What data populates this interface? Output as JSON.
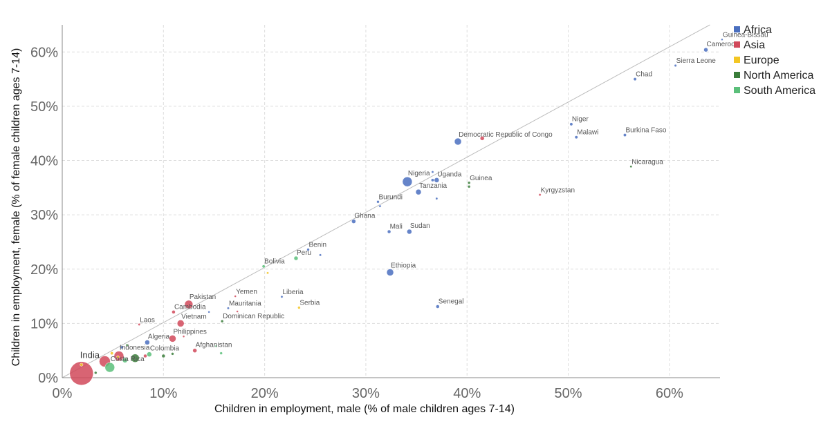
{
  "chart_data": {
    "type": "scatter",
    "xlabel": "Children in employment, male (% of male children ages 7-14)",
    "ylabel": "Children in employment, female (% of female children ages 7-14)",
    "xlim": [
      0,
      65
    ],
    "ylim": [
      0,
      65
    ],
    "x_ticks": [
      {
        "value": 0,
        "label": "0%"
      },
      {
        "value": 10,
        "label": "10%"
      },
      {
        "value": 20,
        "label": "20%"
      },
      {
        "value": 30,
        "label": "30%"
      },
      {
        "value": 40,
        "label": "40%"
      },
      {
        "value": 50,
        "label": "50%"
      },
      {
        "value": 60,
        "label": "60%"
      }
    ],
    "y_ticks": [
      {
        "value": 0,
        "label": "0%"
      },
      {
        "value": 10,
        "label": "10%"
      },
      {
        "value": 20,
        "label": "20%"
      },
      {
        "value": 30,
        "label": "30%"
      },
      {
        "value": 40,
        "label": "40%"
      },
      {
        "value": 50,
        "label": "50%"
      },
      {
        "value": 60,
        "label": "60%"
      }
    ],
    "grid": true,
    "reference_line": "y = x",
    "legend_position": "right-top",
    "legend": [
      {
        "name": "Africa",
        "color": "#4a6fbf"
      },
      {
        "name": "Asia",
        "color": "#d1495b"
      },
      {
        "name": "Europe",
        "color": "#f3c623"
      },
      {
        "name": "North America",
        "color": "#3a7d3a"
      },
      {
        "name": "South America",
        "color": "#5bbf7a"
      }
    ],
    "points": [
      {
        "label": "Guinea-Bissau",
        "region": "Africa",
        "x": 65.2,
        "y": 62.3,
        "size": 1.5
      },
      {
        "label": "Cameroon",
        "region": "Africa",
        "x": 63.6,
        "y": 60.4,
        "size": 3
      },
      {
        "label": "Sierra Leone",
        "region": "Africa",
        "x": 60.6,
        "y": 57.5,
        "size": 1.8
      },
      {
        "label": "Chad",
        "region": "Africa",
        "x": 56.6,
        "y": 55.0,
        "size": 2.2
      },
      {
        "label": "Niger",
        "region": "Africa",
        "x": 50.3,
        "y": 46.7,
        "size": 2.2
      },
      {
        "label": "Malawi",
        "region": "Africa",
        "x": 50.8,
        "y": 44.3,
        "size": 2.2
      },
      {
        "label": "Burkina Faso",
        "region": "Africa",
        "x": 55.6,
        "y": 44.7,
        "size": 2.2
      },
      {
        "label": "Nicaragua",
        "region": "North America",
        "x": 56.2,
        "y": 38.9,
        "size": 1.7
      },
      {
        "label": "Democratic Republic of Congo",
        "region": "Africa",
        "x": 39.1,
        "y": 43.5,
        "size": 5
      },
      {
        "label": "",
        "region": "Asia",
        "x": 41.5,
        "y": 44.1,
        "size": 3
      },
      {
        "label": "Kyrgyzstan",
        "region": "Asia",
        "x": 47.2,
        "y": 33.7,
        "size": 1.7
      },
      {
        "label": "Guinea",
        "region": "North America",
        "x": 40.2,
        "y": 35.9,
        "size": 2
      },
      {
        "label": "",
        "region": "North America",
        "x": 40.2,
        "y": 35.2,
        "size": 2
      },
      {
        "label": "Nigeria",
        "region": "Africa",
        "x": 34.1,
        "y": 36.1,
        "size": 7
      },
      {
        "label": "Uganda",
        "region": "Africa",
        "x": 37.0,
        "y": 36.4,
        "size": 3.5
      },
      {
        "label": "",
        "region": "Africa",
        "x": 36.6,
        "y": 36.4,
        "size": 2.2
      },
      {
        "label": "",
        "region": "Africa",
        "x": 36.6,
        "y": 37.9,
        "size": 1.7
      },
      {
        "label": "Tanzania",
        "region": "Africa",
        "x": 35.2,
        "y": 34.2,
        "size": 4
      },
      {
        "label": "",
        "region": "Africa",
        "x": 37.0,
        "y": 33.0,
        "size": 1.7
      },
      {
        "label": "Burundi",
        "region": "Africa",
        "x": 31.2,
        "y": 32.4,
        "size": 2
      },
      {
        "label": "",
        "region": "Africa",
        "x": 31.4,
        "y": 31.6,
        "size": 1.7
      },
      {
        "label": "Ghana",
        "region": "Africa",
        "x": 28.8,
        "y": 28.8,
        "size": 3
      },
      {
        "label": "Mali",
        "region": "Africa",
        "x": 32.3,
        "y": 26.9,
        "size": 2.5
      },
      {
        "label": "Sudan",
        "region": "Africa",
        "x": 34.3,
        "y": 26.9,
        "size": 3.5
      },
      {
        "label": "Benin",
        "region": "Africa",
        "x": 24.3,
        "y": 23.6,
        "size": 2
      },
      {
        "label": "",
        "region": "Africa",
        "x": 25.5,
        "y": 22.6,
        "size": 1.7
      },
      {
        "label": "Peru",
        "region": "South America",
        "x": 23.1,
        "y": 22.0,
        "size": 3
      },
      {
        "label": "Bolivia",
        "region": "South America",
        "x": 19.9,
        "y": 20.5,
        "size": 2.2
      },
      {
        "label": "",
        "region": "Europe",
        "x": 20.3,
        "y": 19.3,
        "size": 1.7
      },
      {
        "label": "Ethiopia",
        "region": "Africa",
        "x": 32.4,
        "y": 19.4,
        "size": 5
      },
      {
        "label": "Liberia",
        "region": "Africa",
        "x": 21.7,
        "y": 14.9,
        "size": 1.7
      },
      {
        "label": "Yemen",
        "region": "Asia",
        "x": 17.1,
        "y": 15.0,
        "size": 1.5
      },
      {
        "label": "Serbia",
        "region": "Europe",
        "x": 23.4,
        "y": 12.9,
        "size": 2
      },
      {
        "label": "Senegal",
        "region": "Africa",
        "x": 37.1,
        "y": 13.1,
        "size": 2.5
      },
      {
        "label": "Mauritania",
        "region": "Africa",
        "x": 16.4,
        "y": 12.8,
        "size": 1.7
      },
      {
        "label": "",
        "region": "Asia",
        "x": 17.3,
        "y": 12.2,
        "size": 1.5
      },
      {
        "label": "Dominican Republic",
        "region": "North America",
        "x": 15.8,
        "y": 10.4,
        "size": 2
      },
      {
        "label": "Cambodia",
        "region": "Asia",
        "x": 11.0,
        "y": 12.1,
        "size": 2.5
      },
      {
        "label": "",
        "region": "Africa",
        "x": 14.5,
        "y": 12.1,
        "size": 1.5
      },
      {
        "label": "Pakistan",
        "region": "Asia",
        "x": 12.5,
        "y": 13.5,
        "size": 6
      },
      {
        "label": "Vietnam",
        "region": "Asia",
        "x": 11.7,
        "y": 10.0,
        "size": 5
      },
      {
        "label": "Laos",
        "region": "Asia",
        "x": 7.6,
        "y": 9.8,
        "size": 1.7
      },
      {
        "label": "Philippines",
        "region": "Asia",
        "x": 10.9,
        "y": 7.2,
        "size": 5
      },
      {
        "label": "",
        "region": "Asia",
        "x": 12.0,
        "y": 7.6,
        "size": 1.5
      },
      {
        "label": "Afghanistan",
        "region": "Asia",
        "x": 13.1,
        "y": 5.0,
        "size": 3
      },
      {
        "label": "",
        "region": "South America",
        "x": 15.2,
        "y": 5.8,
        "size": 1.5
      },
      {
        "label": "",
        "region": "South America",
        "x": 15.7,
        "y": 4.5,
        "size": 2
      },
      {
        "label": "Algeria",
        "region": "Africa",
        "x": 8.4,
        "y": 6.5,
        "size": 3.5
      },
      {
        "label": "Colombia",
        "region": "South America",
        "x": 8.6,
        "y": 4.3,
        "size": 3.5
      },
      {
        "label": "",
        "region": "Asia",
        "x": 8.2,
        "y": 4.0,
        "size": 2.5
      },
      {
        "label": "",
        "region": "North America",
        "x": 10.0,
        "y": 4.0,
        "size": 2.5
      },
      {
        "label": "",
        "region": "North America",
        "x": 10.9,
        "y": 4.4,
        "size": 2
      },
      {
        "label": "",
        "region": "North America",
        "x": 7.2,
        "y": 3.6,
        "size": 6
      },
      {
        "label": "",
        "region": "South America",
        "x": 6.2,
        "y": 3.2,
        "size": 3.5
      },
      {
        "label": "Indonesia",
        "region": "Asia",
        "x": 5.6,
        "y": 4.0,
        "size": 7
      },
      {
        "label": "",
        "region": "Africa",
        "x": 5.9,
        "y": 5.6,
        "size": 2.2
      },
      {
        "label": "",
        "region": "North America",
        "x": 6.4,
        "y": 6.0,
        "size": 1.7
      },
      {
        "label": "",
        "region": "Europe",
        "x": 4.9,
        "y": 4.5,
        "size": 2.2
      },
      {
        "label": "",
        "region": "Europe",
        "x": 5.5,
        "y": 3.8,
        "size": 2
      },
      {
        "label": "",
        "region": "Asia",
        "x": 4.2,
        "y": 3.0,
        "size": 8
      },
      {
        "label": "Costa Rica",
        "region": "South America",
        "x": 4.7,
        "y": 1.9,
        "size": 7
      },
      {
        "label": "",
        "region": "North America",
        "x": 3.3,
        "y": 0.9,
        "size": 2
      },
      {
        "label": "India",
        "region": "Asia",
        "x": 1.9,
        "y": 0.8,
        "size": 17
      },
      {
        "label": "",
        "region": "Europe",
        "x": 1.9,
        "y": 2.4,
        "size": 2.2
      }
    ]
  }
}
